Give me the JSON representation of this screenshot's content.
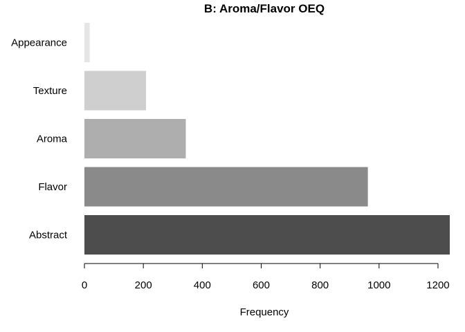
{
  "chart_data": {
    "type": "bar",
    "orientation": "horizontal",
    "title": "B: Aroma/Flavor OEQ",
    "xlabel": "Frequency",
    "ylabel": "",
    "categories": [
      "Abstract",
      "Flavor",
      "Aroma",
      "Texture",
      "Appearance"
    ],
    "values": [
      1240,
      962,
      344,
      209,
      18
    ],
    "colors": [
      "#4d4d4d",
      "#8a8a8a",
      "#aeaeae",
      "#cfcfcf",
      "#e6e6e6"
    ],
    "xlim": [
      0,
      1240
    ],
    "xticks": [
      0,
      200,
      400,
      600,
      800,
      1000,
      1200
    ],
    "grid": false,
    "legend": "none"
  }
}
